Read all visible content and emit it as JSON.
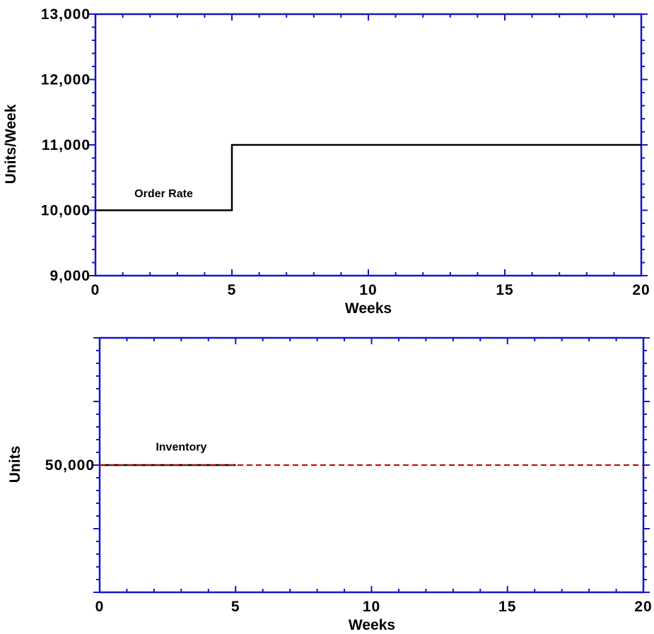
{
  "colors": {
    "axis": "#1515c4",
    "series_solid": "#000000",
    "series_dashed": "#c40000",
    "background": "#ffffff"
  },
  "chart_data": [
    {
      "type": "line",
      "xlabel": "Weeks",
      "ylabel": "Units/Week",
      "xlim": [
        0,
        20
      ],
      "ylim": [
        9000,
        13000
      ],
      "x_ticks": [
        "0",
        "5",
        "10",
        "15",
        "20"
      ],
      "y_ticks": [
        "9,000",
        "10,000",
        "11,000",
        "12,000",
        "13,000"
      ],
      "grid": false,
      "annotations": [
        {
          "text": "Order Rate",
          "x": 2.5,
          "y": 10200
        }
      ],
      "series": [
        {
          "style": "solid",
          "color": "#000000",
          "x": [
            0,
            5,
            5,
            20
          ],
          "y": [
            10000,
            10000,
            11000,
            11000
          ]
        }
      ]
    },
    {
      "type": "line",
      "xlabel": "Weeks",
      "ylabel": "Units",
      "xlim": [
        0,
        20
      ],
      "ylim": [
        30000,
        70000
      ],
      "x_ticks": [
        "0",
        "5",
        "10",
        "15",
        "20"
      ],
      "y_ticks": [
        "50,000"
      ],
      "y_tick_values": [
        50000
      ],
      "grid": false,
      "annotations": [
        {
          "text": "Inventory",
          "x": 3.0,
          "y": 52300
        }
      ],
      "series": [
        {
          "style": "solid",
          "color": "#000000",
          "x": [
            0,
            5
          ],
          "y": [
            50000,
            50000
          ]
        },
        {
          "style": "dashed",
          "color": "#c40000",
          "x": [
            0,
            20
          ],
          "y": [
            50000,
            50000
          ]
        }
      ]
    }
  ]
}
